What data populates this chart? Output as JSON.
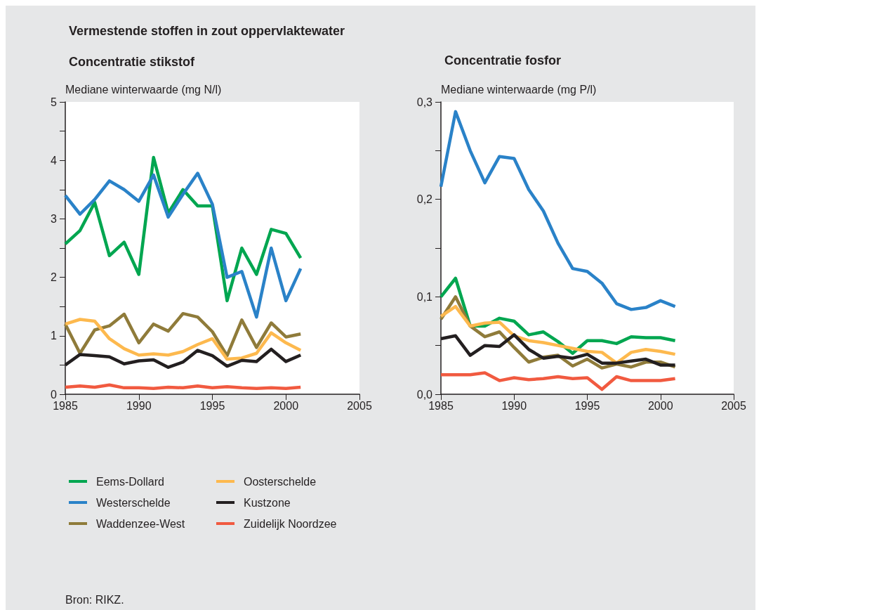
{
  "chart_data": [
    {
      "type": "line",
      "title": "Vermestende stoffen in zout oppervlaktewater",
      "subtitle": "Concentratie stikstof",
      "ylabel": "Mediane winterwaarde (mg N/l)",
      "annotations": [
        "Bron: RIKZ."
      ],
      "legend": "bottom",
      "grid": false,
      "line_style": "solid",
      "marker": "none",
      "x": [
        1985,
        1986,
        1987,
        1988,
        1989,
        1990,
        1991,
        1992,
        1993,
        1994,
        1995,
        1996,
        1997,
        1998,
        1999,
        2000,
        2001
      ],
      "xlim": [
        1985,
        2005
      ],
      "xticks": [
        1985,
        1990,
        1995,
        2000,
        2005
      ],
      "ylim": [
        0,
        5
      ],
      "yticks": [
        0,
        {
          "value": 0.5,
          "label": null
        },
        1,
        {
          "value": 1.5,
          "label": null
        },
        2,
        {
          "value": 2.5,
          "label": null
        },
        3,
        {
          "value": 3.5,
          "label": null
        },
        4,
        {
          "value": 4.5,
          "label": null
        },
        5
      ],
      "series": [
        {
          "name": "Eems-Dollard",
          "color": "#00a650",
          "values": [
            2.57,
            2.8,
            3.28,
            2.37,
            2.6,
            2.05,
            4.05,
            3.1,
            3.5,
            3.22,
            3.22,
            1.6,
            2.5,
            2.05,
            2.82,
            2.75,
            2.33
          ]
        },
        {
          "name": "Westerschelde",
          "color": "#2a82c8",
          "values": [
            3.4,
            3.08,
            3.33,
            3.65,
            3.5,
            3.3,
            3.75,
            3.03,
            3.42,
            3.78,
            3.25,
            2.0,
            2.1,
            1.32,
            2.5,
            1.6,
            2.15
          ]
        },
        {
          "name": "Waddenzee-West",
          "color": "#8f7b3a",
          "values": [
            1.2,
            0.7,
            1.1,
            1.17,
            1.37,
            0.88,
            1.2,
            1.08,
            1.38,
            1.32,
            1.07,
            0.66,
            1.27,
            0.8,
            1.22,
            0.98,
            1.03
          ]
        },
        {
          "name": "Oosterschelde",
          "color": "#fdb94e",
          "values": [
            1.2,
            1.28,
            1.25,
            0.95,
            0.78,
            0.67,
            0.69,
            0.67,
            0.73,
            0.85,
            0.95,
            0.6,
            0.62,
            0.7,
            1.05,
            0.88,
            0.75
          ]
        },
        {
          "name": "Kustzone",
          "color": "#231f20",
          "values": [
            0.5,
            0.68,
            0.66,
            0.64,
            0.52,
            0.57,
            0.59,
            0.46,
            0.55,
            0.75,
            0.66,
            0.48,
            0.58,
            0.56,
            0.77,
            0.56,
            0.67
          ]
        },
        {
          "name": "Zuidelijk Noordzee",
          "color": "#f15a40",
          "values": [
            0.12,
            0.14,
            0.12,
            0.16,
            0.11,
            0.11,
            0.1,
            0.12,
            0.11,
            0.14,
            0.11,
            0.13,
            0.11,
            0.1,
            0.11,
            0.1,
            0.12
          ]
        }
      ]
    },
    {
      "type": "line",
      "title": "Concentratie fosfor",
      "ylabel": "Mediane winterwaarde (mg P/l)",
      "grid": false,
      "line_style": "solid",
      "marker": "none",
      "x": [
        1985,
        1986,
        1987,
        1988,
        1989,
        1990,
        1991,
        1992,
        1993,
        1994,
        1995,
        1996,
        1997,
        1998,
        1999,
        2000,
        2001
      ],
      "xlim": [
        1985,
        2005
      ],
      "xticks": [
        1985,
        1990,
        1995,
        2000,
        2005
      ],
      "ylim": [
        0,
        0.3
      ],
      "yticks": [
        {
          "value": 0,
          "label": "0,0"
        },
        {
          "value": 0.05,
          "label": null
        },
        {
          "value": 0.1,
          "label": "0,1"
        },
        {
          "value": 0.15,
          "label": null
        },
        {
          "value": 0.2,
          "label": "0,2"
        },
        {
          "value": 0.25,
          "label": null
        },
        {
          "value": 0.3,
          "label": "0,3"
        }
      ],
      "series": [
        {
          "color": "#00a650",
          "values": [
            0.1,
            0.119,
            0.07,
            0.07,
            0.078,
            0.075,
            0.061,
            0.064,
            0.054,
            0.042,
            0.055,
            0.055,
            0.052,
            0.059,
            0.058,
            0.058,
            0.055
          ]
        },
        {
          "color": "#2a82c8",
          "values": [
            0.213,
            0.29,
            0.25,
            0.217,
            0.244,
            0.242,
            0.21,
            0.188,
            0.155,
            0.129,
            0.126,
            0.114,
            0.093,
            0.087,
            0.089,
            0.096,
            0.09
          ]
        },
        {
          "color": "#8f7b3a",
          "values": [
            0.077,
            0.1,
            0.07,
            0.059,
            0.064,
            0.048,
            0.033,
            0.038,
            0.04,
            0.029,
            0.036,
            0.027,
            0.031,
            0.028,
            0.033,
            0.033,
            0.028
          ]
        },
        {
          "color": "#fdb94e",
          "values": [
            0.08,
            0.09,
            0.07,
            0.073,
            0.074,
            0.06,
            0.055,
            0.053,
            0.05,
            0.047,
            0.044,
            0.043,
            0.032,
            0.043,
            0.046,
            0.044,
            0.041
          ]
        },
        {
          "color": "#231f20",
          "values": [
            0.057,
            0.06,
            0.04,
            0.05,
            0.049,
            0.061,
            0.046,
            0.037,
            0.039,
            0.037,
            0.041,
            0.032,
            0.032,
            0.034,
            0.036,
            0.03,
            0.03
          ]
        },
        {
          "color": "#f15a40",
          "values": [
            0.02,
            0.02,
            0.02,
            0.022,
            0.014,
            0.017,
            0.015,
            0.016,
            0.018,
            0.016,
            0.017,
            0.005,
            0.018,
            0.014,
            0.014,
            0.014,
            0.016
          ]
        }
      ]
    }
  ]
}
